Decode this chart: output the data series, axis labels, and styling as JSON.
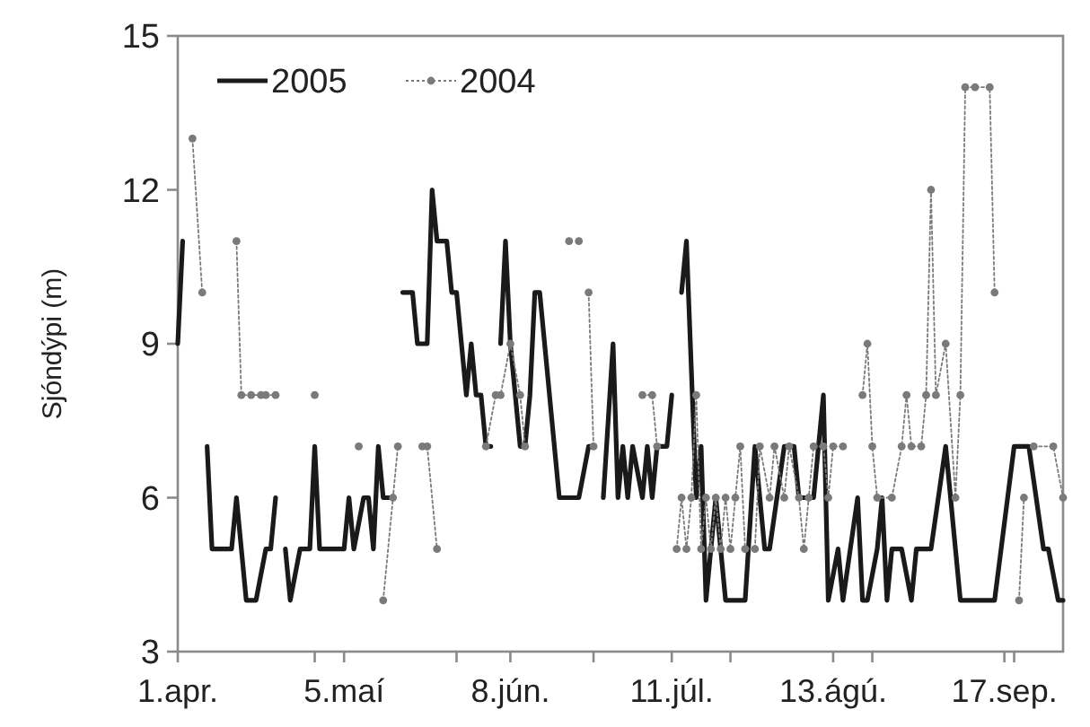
{
  "chart_data": {
    "type": "line",
    "ylabel": "Sjóndýpi (m)",
    "xlim": [
      "--04-01",
      "--09-29"
    ],
    "ylim": [
      3,
      15
    ],
    "yticks": [
      3,
      6,
      9,
      12,
      15
    ],
    "xticks": [
      {
        "value": "--04-01",
        "label": "1.apr."
      },
      {
        "value": "--05-05",
        "label": "5.maí"
      },
      {
        "value": "--06-08",
        "label": "8.jún."
      },
      {
        "value": "--07-11",
        "label": "11.júl."
      },
      {
        "value": "--08-13",
        "label": "13.ágú."
      },
      {
        "value": "--09-17",
        "label": "17.sep."
      },
      {
        "value": "--04-29",
        "label": null
      },
      {
        "value": "--05-28",
        "label": null
      },
      {
        "value": "--06-25",
        "label": null
      },
      {
        "value": "--07-23",
        "label": null
      },
      {
        "value": "--08-21",
        "label": null
      },
      {
        "value": "--09-19",
        "label": null
      }
    ],
    "grid": false,
    "legend": "top left",
    "series": [
      {
        "name": "2005",
        "color": "#1a1a1a",
        "line_style": "solid",
        "marker": "none",
        "x": [
          "--04-01",
          "--04-02",
          "--04-04",
          "--04-07",
          "--04-08",
          "--04-12",
          "--04-13",
          "--04-14",
          "--04-15",
          "--04-17",
          "--04-19",
          "--04-20",
          "--04-21",
          "--04-22",
          "--04-23",
          "--04-24",
          "--04-26",
          "--04-28",
          "--04-29",
          "--04-30",
          "--05-05",
          "--05-06",
          "--05-07",
          "--05-09",
          "--05-10",
          "--05-11",
          "--05-12",
          "--05-13",
          "--05-15",
          "--05-16",
          "--05-17",
          "--05-19",
          "--05-20",
          "--05-22",
          "--05-23",
          "--05-24",
          "--05-26",
          "--05-27",
          "--05-28",
          "--05-29",
          "--05-30",
          "--05-31",
          "--06-01",
          "--06-02",
          "--06-03",
          "--06-04",
          "--06-05",
          "--06-06",
          "--06-07",
          "--06-08",
          "--06-10",
          "--06-11",
          "--06-12",
          "--06-13",
          "--06-14",
          "--06-17",
          "--06-18",
          "--06-22",
          "--06-24",
          "--06-25",
          "--06-26",
          "--06-27",
          "--06-29",
          "--06-30",
          "--07-01",
          "--07-02",
          "--07-03",
          "--07-05",
          "--07-06",
          "--07-07",
          "--07-08",
          "--07-10",
          "--07-11",
          "--07-12",
          "--07-13",
          "--07-14",
          "--07-16",
          "--07-17",
          "--07-18",
          "--07-20",
          "--07-21",
          "--07-22",
          "--07-26",
          "--07-28",
          "--07-29",
          "--07-30",
          "--07-31",
          "--08-03",
          "--08-05",
          "--08-06",
          "--08-09",
          "--08-10",
          "--08-11",
          "--08-12",
          "--08-14",
          "--08-15",
          "--08-18",
          "--08-19",
          "--08-20",
          "--08-22",
          "--08-23",
          "--08-24",
          "--08-25",
          "--08-27",
          "--08-29",
          "--08-30",
          "--09-02",
          "--09-05",
          "--09-07",
          "--09-08",
          "--09-15",
          "--09-19",
          "--09-22",
          "--09-25",
          "--09-26",
          "--09-28",
          "--09-29"
        ],
        "values": [
          9,
          11,
          null,
          7,
          5,
          5,
          6,
          5,
          4,
          4,
          5,
          5,
          6,
          null,
          5,
          4,
          5,
          5,
          7,
          5,
          5,
          6,
          5,
          6,
          6,
          5,
          7,
          6,
          6,
          null,
          10,
          10,
          9,
          9,
          12,
          11,
          11,
          10,
          10,
          9,
          8,
          9,
          8,
          8,
          7,
          7,
          null,
          9,
          11,
          9,
          7,
          7,
          8,
          10,
          10,
          7,
          6,
          6,
          7,
          7,
          null,
          6,
          9,
          6,
          7,
          6,
          7,
          6,
          7,
          6,
          7,
          7,
          8,
          null,
          10,
          11,
          6,
          7,
          4,
          6,
          5,
          4,
          4,
          7,
          6,
          5,
          5,
          7,
          7,
          6,
          6,
          7,
          8,
          4,
          5,
          4,
          6,
          4,
          4,
          5,
          6,
          4,
          5,
          5,
          4,
          5,
          5,
          7,
          5,
          4,
          4,
          7,
          7,
          5,
          5,
          4,
          4
        ]
      },
      {
        "name": "2004",
        "color": "#7a7a7a",
        "line_style": "dotted",
        "marker": "circle",
        "x": [
          "--04-04",
          "--04-06",
          "--04-09",
          "--04-13",
          "--04-14",
          "--04-16",
          "--04-18",
          "--04-19",
          "--04-21",
          "--04-25",
          "--04-29",
          "--05-04",
          "--05-08",
          "--05-10",
          "--05-13",
          "--05-15",
          "--05-16",
          "--05-18",
          "--05-21",
          "--05-22",
          "--05-24",
          "--05-26",
          "--06-03",
          "--06-05",
          "--06-06",
          "--06-08",
          "--06-10",
          "--06-11",
          "--06-15",
          "--06-20",
          "--06-21",
          "--06-22",
          "--06-23",
          "--06-24",
          "--06-25",
          "--06-28",
          "--07-05",
          "--07-07",
          "--07-08",
          "--07-10",
          "--07-12",
          "--07-13",
          "--07-14",
          "--07-15",
          "--07-16",
          "--07-17",
          "--07-18",
          "--07-19",
          "--07-20",
          "--07-21",
          "--07-22",
          "--07-23",
          "--07-24",
          "--07-25",
          "--07-26",
          "--07-28",
          "--07-29",
          "--07-31",
          "--08-01",
          "--08-03",
          "--08-04",
          "--08-06",
          "--08-07",
          "--08-08",
          "--08-09",
          "--08-11",
          "--08-12",
          "--08-13",
          "--08-15",
          "--08-17",
          "--08-19",
          "--08-20",
          "--08-21",
          "--08-22",
          "--08-25",
          "--08-27",
          "--08-28",
          "--08-29",
          "--08-31",
          "--09-01",
          "--09-02",
          "--09-03",
          "--09-05",
          "--09-07",
          "--09-08",
          "--09-09",
          "--09-11",
          "--09-14",
          "--09-15",
          "--09-17",
          "--09-20",
          "--09-21",
          "--09-22",
          "--09-23",
          "--09-27",
          "--09-29"
        ],
        "values": [
          13,
          10,
          null,
          11,
          8,
          8,
          8,
          8,
          8,
          null,
          8,
          null,
          7,
          null,
          4,
          6,
          7,
          null,
          7,
          7,
          5,
          null,
          7,
          8,
          8,
          9,
          8,
          7,
          null,
          11,
          null,
          11,
          null,
          10,
          7,
          null,
          8,
          8,
          7,
          null,
          5,
          6,
          5,
          6,
          8,
          5,
          6,
          5,
          6,
          5,
          6,
          5,
          6,
          7,
          5,
          5,
          7,
          6,
          7,
          6,
          7,
          6,
          5,
          6,
          7,
          7,
          6,
          7,
          7,
          null,
          8,
          9,
          7,
          6,
          6,
          7,
          8,
          7,
          7,
          8,
          12,
          8,
          9,
          6,
          8,
          14,
          14,
          14,
          10,
          null,
          4,
          6,
          null,
          7,
          7,
          6
        ]
      }
    ]
  }
}
